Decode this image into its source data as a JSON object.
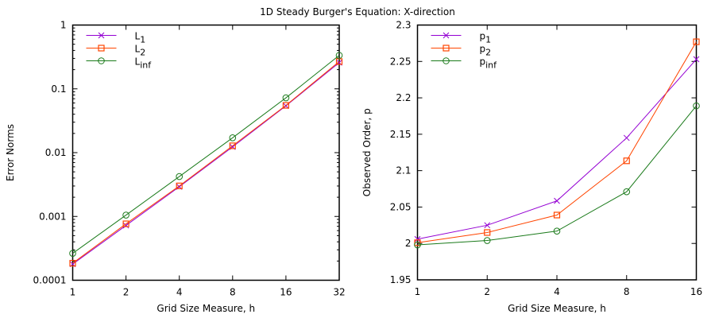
{
  "title": "1D Steady Burger's Equation: X-direction",
  "chart_data": [
    {
      "type": "line",
      "xlabel": "Grid Size Measure, h",
      "ylabel": "Error Norms",
      "xscale": "log2",
      "yscale": "log10",
      "xlim": [
        1,
        32
      ],
      "ylim": [
        0.0001,
        1
      ],
      "xticks": [
        1,
        2,
        4,
        8,
        16,
        32
      ],
      "xtick_labels": [
        "1",
        "2",
        "4",
        "8",
        "16",
        "32"
      ],
      "yticks": [
        0.0001,
        0.001,
        0.01,
        0.1,
        1
      ],
      "ytick_labels": [
        "0.0001",
        "0.001",
        "0.01",
        "0.1",
        "1"
      ],
      "grid": false,
      "legend_position": "top-left",
      "x": [
        1,
        2,
        4,
        8,
        16,
        32
      ],
      "series": [
        {
          "name": "L1",
          "label_base": "L",
          "label_sub": "1",
          "color": "#9400D3",
          "marker": "x",
          "values": [
            0.000179,
            0.000723,
            0.00292,
            0.0123,
            0.0542,
            0.258
          ]
        },
        {
          "name": "L2",
          "label_base": "L",
          "label_sub": "2",
          "color": "#FF4500",
          "marker": "square",
          "values": [
            0.000185,
            0.000766,
            0.00301,
            0.0128,
            0.0551,
            0.268
          ]
        },
        {
          "name": "Linf",
          "label_base": "L",
          "label_sub": "inf",
          "color": "#1A7A1A",
          "marker": "circle",
          "values": [
            0.000264,
            0.00105,
            0.00422,
            0.0171,
            0.0723,
            0.335
          ]
        }
      ]
    },
    {
      "type": "line",
      "xlabel": "Grid Size Measure, h",
      "ylabel": "Observed Order, p",
      "xscale": "log2",
      "yscale": "linear",
      "xlim": [
        1,
        16
      ],
      "ylim": [
        1.95,
        2.3
      ],
      "xticks": [
        1,
        2,
        4,
        8,
        16
      ],
      "xtick_labels": [
        "1",
        "2",
        "4",
        "8",
        "16"
      ],
      "yticks": [
        1.95,
        2,
        2.05,
        2.1,
        2.15,
        2.2,
        2.25,
        2.3
      ],
      "ytick_labels": [
        "1.95",
        "2",
        "2.05",
        "2.1",
        "2.15",
        "2.2",
        "2.25",
        "2.3"
      ],
      "grid": false,
      "legend_position": "top-left",
      "x": [
        1,
        2,
        4,
        8,
        16
      ],
      "series": [
        {
          "name": "p1",
          "label_base": "p",
          "label_sub": "1",
          "color": "#9400D3",
          "marker": "x",
          "values": [
            2.006,
            2.025,
            2.0585,
            2.145,
            2.253
          ]
        },
        {
          "name": "p2",
          "label_base": "p",
          "label_sub": "2",
          "color": "#FF4500",
          "marker": "square",
          "values": [
            2.001,
            2.015,
            2.039,
            2.1135,
            2.277
          ]
        },
        {
          "name": "pinf",
          "label_base": "p",
          "label_sub": "inf",
          "color": "#1A7A1A",
          "marker": "circle",
          "values": [
            1.998,
            2.004,
            2.017,
            2.071,
            2.189
          ]
        }
      ]
    }
  ]
}
